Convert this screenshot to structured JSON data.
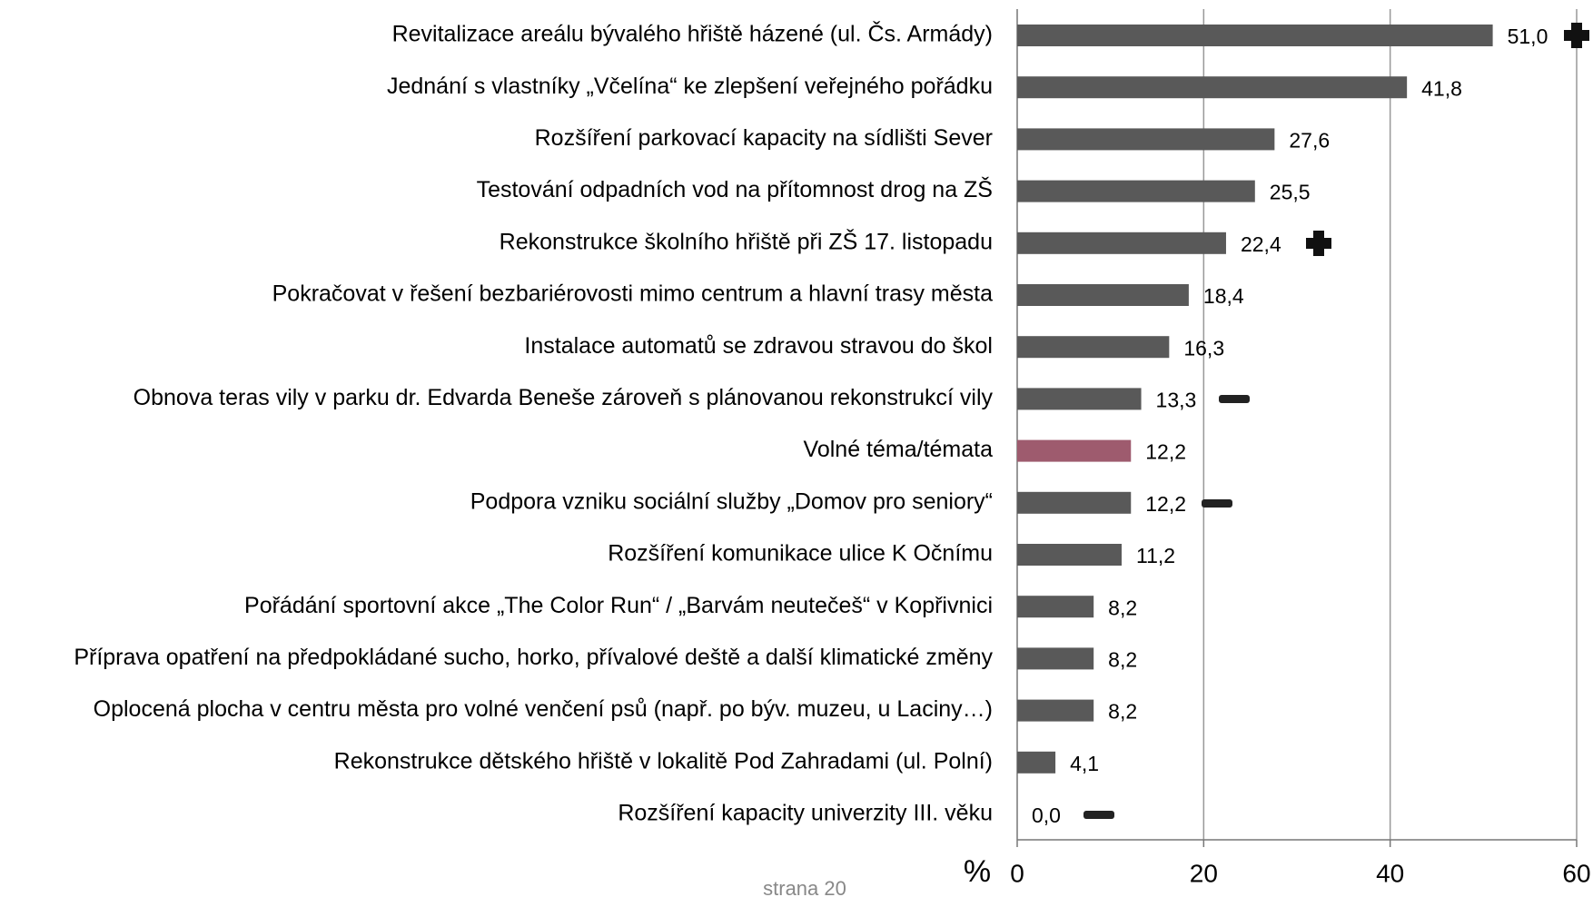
{
  "chart_data": {
    "type": "hbar",
    "categories": [
      "Revitalizace areálu bývalého hřiště házené (ul. Čs. Armády)",
      "Jednání s vlastníky „Včelína“ ke zlepšení veřejného pořádku",
      "Rozšíření parkovací kapacity na sídlišti Sever",
      "Testování odpadních vod na přítomnost drog na ZŠ",
      "Rekonstrukce školního hřiště při ZŠ 17. listopadu",
      "Pokračovat v řešení bezbariérovosti mimo centrum a hlavní trasy města",
      "Instalace automatů se zdravou stravou do škol",
      "Obnova teras vily v parku dr. Edvarda Beneše zároveň s plánovanou rekonstrukcí vily",
      "Volné téma/témata",
      "Podpora vzniku sociální služby „Domov pro seniory“",
      "Rozšíření komunikace ulice K Očnímu",
      "Pořádání sportovní akce „The Color Run“  / „Barvám neutečeš“ v Kopřivnici",
      "Příprava opatření na předpokládané sucho, horko, přívalové deště a další klimatické změny",
      "Oplocená plocha v centru města pro volné venčení psů (např. po býv. muzeu, u Laciny…)",
      "Rekonstrukce dětského hřiště v lokalitě Pod Zahradami (ul. Polní)",
      "Rozšíření kapacity univerzity III. věku"
    ],
    "values": [
      51.0,
      41.8,
      27.6,
      25.5,
      22.4,
      18.4,
      16.3,
      13.3,
      12.2,
      12.2,
      11.2,
      8.2,
      8.2,
      8.2,
      4.1,
      0.0
    ],
    "value_labels": [
      "51,0",
      "41,8",
      "27,6",
      "25,5",
      "22,4",
      "18,4",
      "16,3",
      "13,3",
      "12,2",
      "12,2",
      "11,2",
      "8,2",
      "8,2",
      "8,2",
      "4,1",
      "0,0"
    ],
    "colors": [
      "#595959",
      "#595959",
      "#595959",
      "#595959",
      "#595959",
      "#595959",
      "#595959",
      "#595959",
      "#9e5b6e",
      "#595959",
      "#595959",
      "#595959",
      "#595959",
      "#595959",
      "#595959",
      "#595959"
    ],
    "xlabel": "%",
    "xlim": [
      0,
      60
    ],
    "xticks": [
      0,
      20,
      40,
      60
    ],
    "grid": true,
    "footer": "strana 20"
  }
}
